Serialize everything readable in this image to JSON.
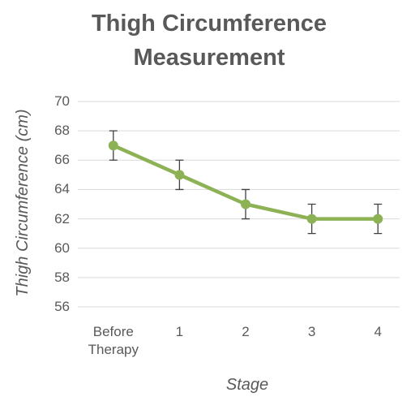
{
  "chart_data": {
    "type": "line",
    "title": "Thigh Circumference Measurement",
    "x_label": "Stage",
    "y_label": "Thigh Circumference (cm)",
    "categories": [
      "Before Therapy",
      "1",
      "2",
      "3",
      "4"
    ],
    "series": [
      {
        "name": "Thigh Circumference",
        "color": "#8db255",
        "values": [
          67,
          65,
          63,
          62,
          62
        ],
        "errors": [
          1,
          1,
          1,
          1,
          1
        ]
      }
    ],
    "ylim": [
      56,
      70
    ],
    "yticks": [
      56,
      58,
      60,
      62,
      64,
      66,
      68,
      70
    ],
    "grid": true,
    "error_color": "#404040"
  }
}
